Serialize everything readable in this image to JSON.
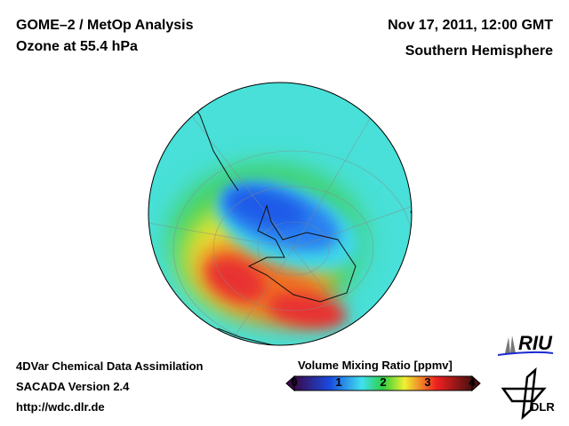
{
  "header": {
    "title_line1": "GOME–2 / MetOp Analysis",
    "title_line2": "Ozone at 55.4 hPa",
    "date": "Nov 17, 2011, 12:00 GMT",
    "region": "Southern Hemisphere"
  },
  "footer": {
    "line1": "4DVar Chemical Data Assimilation",
    "line2": "SACADA Version 2.4",
    "url": "http://wdc.dlr.de"
  },
  "colorbar": {
    "title": "Volume Mixing Ratio [ppmv]",
    "ticks": [
      "0",
      "1",
      "2",
      "3",
      "4"
    ],
    "range": [
      0,
      4
    ],
    "colors": [
      "#3a0a4a",
      "#1a4ae0",
      "#40e0f0",
      "#30d040",
      "#f0f030",
      "#f02020",
      "#4a1010"
    ]
  },
  "logos": {
    "riu": "RIU",
    "dlr": "DLR"
  }
}
